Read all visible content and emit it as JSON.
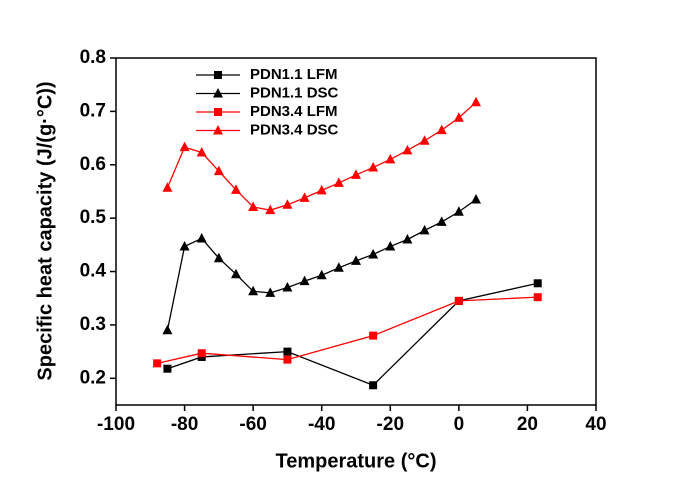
{
  "chart_data": {
    "type": "line",
    "x_label": "Temperature (°C)",
    "y_label": "Specific heat capacity (J/(g·°C))",
    "xlim": [
      -100,
      40
    ],
    "xticks": [
      -100,
      -80,
      -60,
      -40,
      -20,
      0,
      20,
      40
    ],
    "ylim": [
      0.15,
      0.8
    ],
    "yticks": [
      0.2,
      0.3,
      0.4,
      0.5,
      0.6,
      0.7,
      0.8
    ],
    "legend": "top-left",
    "series": [
      {
        "name": "PDN1.1 LFM",
        "color": "#000000",
        "marker": "square",
        "x": [
          -85,
          -75,
          -50,
          -25,
          0,
          23
        ],
        "values": [
          0.218,
          0.24,
          0.25,
          0.187,
          0.345,
          0.378
        ]
      },
      {
        "name": "PDN1.1 DSC",
        "color": "#000000",
        "marker": "triangle",
        "x": [
          -85,
          -80,
          -75,
          -70,
          -65,
          -60,
          -55,
          -50,
          -45,
          -40,
          -35,
          -30,
          -25,
          -20,
          -15,
          -10,
          -5,
          0,
          5
        ],
        "values": [
          0.29,
          0.447,
          0.462,
          0.425,
          0.395,
          0.363,
          0.36,
          0.37,
          0.382,
          0.393,
          0.407,
          0.42,
          0.432,
          0.447,
          0.46,
          0.477,
          0.493,
          0.512,
          0.535
        ]
      },
      {
        "name": "PDN3.4 LFM",
        "color": "#ff0000",
        "marker": "square",
        "x": [
          -88,
          -75,
          -50,
          -25,
          0,
          23
        ],
        "values": [
          0.228,
          0.247,
          0.235,
          0.28,
          0.345,
          0.352
        ]
      },
      {
        "name": "PDN3.4 DSC",
        "color": "#ff0000",
        "marker": "triangle",
        "x": [
          -85,
          -80,
          -75,
          -70,
          -65,
          -60,
          -55,
          -50,
          -45,
          -40,
          -35,
          -30,
          -25,
          -20,
          -15,
          -10,
          -5,
          0,
          5
        ],
        "values": [
          0.557,
          0.633,
          0.623,
          0.588,
          0.553,
          0.521,
          0.515,
          0.525,
          0.538,
          0.552,
          0.566,
          0.581,
          0.595,
          0.61,
          0.627,
          0.645,
          0.665,
          0.688,
          0.717
        ]
      }
    ]
  }
}
